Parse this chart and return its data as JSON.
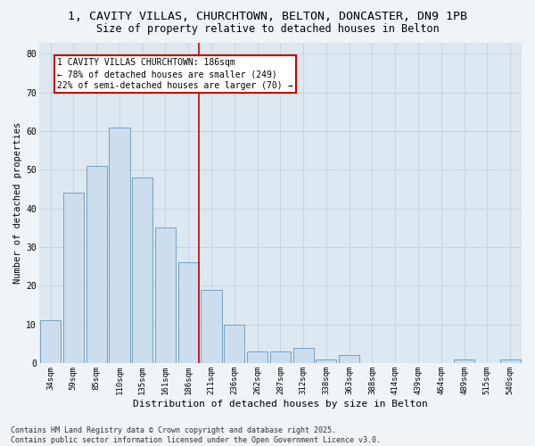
{
  "title_line1": "1, CAVITY VILLAS, CHURCHTOWN, BELTON, DONCASTER, DN9 1PB",
  "title_line2": "Size of property relative to detached houses in Belton",
  "xlabel": "Distribution of detached houses by size in Belton",
  "ylabel": "Number of detached properties",
  "categories": [
    "34sqm",
    "59sqm",
    "85sqm",
    "110sqm",
    "135sqm",
    "161sqm",
    "186sqm",
    "211sqm",
    "236sqm",
    "262sqm",
    "287sqm",
    "312sqm",
    "338sqm",
    "363sqm",
    "388sqm",
    "414sqm",
    "439sqm",
    "464sqm",
    "489sqm",
    "515sqm",
    "540sqm"
  ],
  "values": [
    11,
    44,
    51,
    61,
    48,
    35,
    26,
    19,
    10,
    3,
    3,
    4,
    1,
    2,
    0,
    0,
    0,
    0,
    1,
    0,
    1
  ],
  "bar_color": "#ccdded",
  "bar_edge_color": "#6699bb",
  "highlight_index": 6,
  "annotation_text": "1 CAVITY VILLAS CHURCHTOWN: 186sqm\n← 78% of detached houses are smaller (249)\n22% of semi-detached houses are larger (70) →",
  "annotation_box_color": "#ffffff",
  "annotation_box_edge": "#cc0000",
  "red_line_color": "#cc0000",
  "ylim": [
    0,
    83
  ],
  "yticks": [
    0,
    10,
    20,
    30,
    40,
    50,
    60,
    70,
    80
  ],
  "grid_color": "#c8d4e4",
  "background_color": "#dde8f0",
  "fig_bg_color": "#eef4f8",
  "footer": "Contains HM Land Registry data © Crown copyright and database right 2025.\nContains public sector information licensed under the Open Government Licence v3.0.",
  "title_fontsize": 9.5,
  "subtitle_fontsize": 8.5,
  "axis_label_fontsize": 7.5,
  "tick_fontsize": 6.5,
  "annotation_fontsize": 7,
  "footer_fontsize": 6
}
